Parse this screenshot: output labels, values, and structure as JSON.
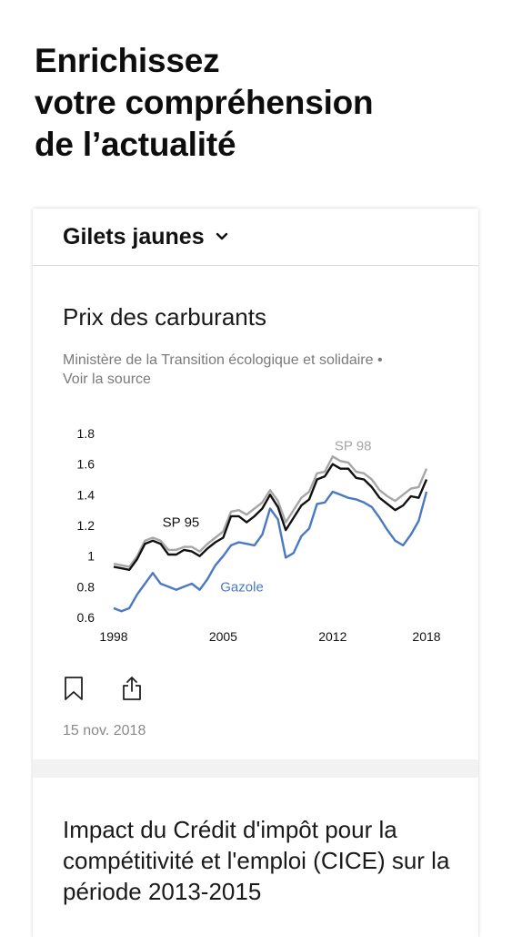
{
  "hero": {
    "line1": "Enrichissez",
    "line2": "votre compréhension",
    "line3": "de l’actualité"
  },
  "topic": {
    "name": "Gilets jaunes",
    "chevron_icon": "chevron-down-icon"
  },
  "article1": {
    "title": "Prix des carburants",
    "source": "Ministère de la Transition écologique et solidaire •",
    "source_link": "Voir la source",
    "date": "15 nov. 2018",
    "actions": [
      "bookmark-icon",
      "share-icon"
    ]
  },
  "chart_data": {
    "type": "line",
    "title": "",
    "xlabel": "",
    "ylabel": "",
    "xlim": [
      1998,
      2018
    ],
    "ylim": [
      0.6,
      1.8
    ],
    "x_ticks": [
      "1998",
      "2005",
      "2012",
      "2018"
    ],
    "y_ticks": [
      "1.8",
      "1.6",
      "1.4",
      "1.2",
      "1",
      "0.8",
      "0.6"
    ],
    "grid": false,
    "legend": "inline labels",
    "x": [
      1998,
      1998.5,
      1999,
      1999.5,
      2000,
      2000.5,
      2001,
      2001.5,
      2002,
      2002.5,
      2003,
      2003.5,
      2004,
      2004.5,
      2005,
      2005.5,
      2006,
      2006.5,
      2007,
      2007.5,
      2008,
      2008.5,
      2009,
      2009.5,
      2010,
      2010.5,
      2011,
      2011.5,
      2012,
      2012.5,
      2013,
      2013.5,
      2014,
      2014.5,
      2015,
      2015.5,
      2016,
      2016.5,
      2017,
      2017.5,
      2018
    ],
    "series": [
      {
        "name": "SP 98",
        "color": "#a6a6a6",
        "values": [
          0.95,
          0.94,
          0.93,
          1.0,
          1.1,
          1.12,
          1.1,
          1.04,
          1.04,
          1.06,
          1.06,
          1.03,
          1.08,
          1.12,
          1.16,
          1.29,
          1.3,
          1.27,
          1.31,
          1.35,
          1.43,
          1.36,
          1.22,
          1.3,
          1.38,
          1.42,
          1.54,
          1.55,
          1.65,
          1.62,
          1.61,
          1.55,
          1.54,
          1.5,
          1.43,
          1.39,
          1.36,
          1.4,
          1.44,
          1.45,
          1.57
        ]
      },
      {
        "name": "SP 95",
        "color": "#111111",
        "values": [
          0.93,
          0.92,
          0.91,
          0.98,
          1.08,
          1.1,
          1.08,
          1.01,
          1.01,
          1.04,
          1.03,
          1.0,
          1.05,
          1.09,
          1.12,
          1.26,
          1.26,
          1.22,
          1.26,
          1.31,
          1.4,
          1.32,
          1.17,
          1.25,
          1.33,
          1.37,
          1.5,
          1.52,
          1.6,
          1.57,
          1.57,
          1.51,
          1.5,
          1.45,
          1.38,
          1.34,
          1.3,
          1.33,
          1.39,
          1.38,
          1.5
        ]
      },
      {
        "name": "Gazole",
        "color": "#4a78c2",
        "values": [
          0.66,
          0.64,
          0.66,
          0.75,
          0.82,
          0.89,
          0.82,
          0.8,
          0.78,
          0.8,
          0.82,
          0.78,
          0.85,
          0.94,
          1.0,
          1.07,
          1.09,
          1.08,
          1.07,
          1.14,
          1.31,
          1.24,
          0.99,
          1.02,
          1.13,
          1.18,
          1.34,
          1.35,
          1.42,
          1.4,
          1.38,
          1.37,
          1.35,
          1.32,
          1.25,
          1.17,
          1.1,
          1.07,
          1.14,
          1.23,
          1.42
        ]
      }
    ]
  },
  "article2": {
    "title": "Impact du Crédit d'impôt pour la compétitivité et l'emploi (CICE) sur la période 2013-2015"
  }
}
